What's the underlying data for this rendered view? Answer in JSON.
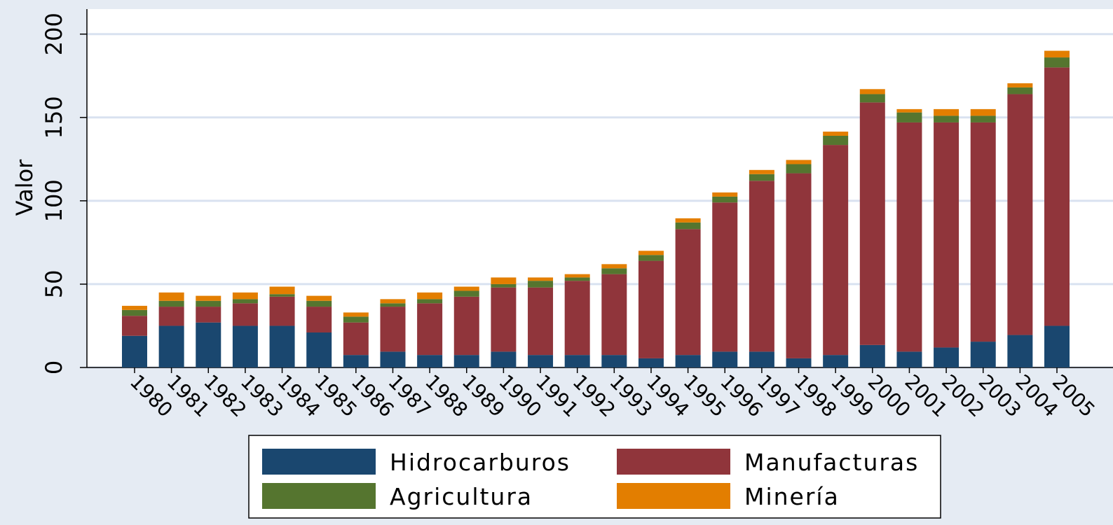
{
  "chart_data": {
    "type": "stacked_bar",
    "y_label": "Valor",
    "categories": [
      "1980",
      "1981",
      "1982",
      "1983",
      "1984",
      "1985",
      "1986",
      "1987",
      "1988",
      "1989",
      "1990",
      "1991",
      "1992",
      "1993",
      "1994",
      "1995",
      "1996",
      "1997",
      "1998",
      "1999",
      "2000",
      "2001",
      "2002",
      "2003",
      "2004",
      "2005"
    ],
    "series": [
      {
        "name": "Hidrocarburos",
        "color": "#1a476f",
        "values": [
          19,
          25,
          27,
          25,
          25,
          21,
          7.5,
          9.5,
          7.5,
          7.5,
          9.5,
          7.5,
          7.5,
          7.5,
          5.5,
          7.5,
          9.5,
          9.5,
          5.5,
          7.5,
          13.5,
          9.5,
          12,
          15.5,
          19.5,
          25
        ]
      },
      {
        "name": "Manufacturas",
        "color": "#90353b",
        "values": [
          12,
          11.5,
          9.5,
          13.5,
          17.5,
          15.5,
          19.5,
          27,
          31,
          35,
          38.5,
          40.5,
          44.5,
          48.5,
          58.5,
          75.5,
          89.5,
          102.5,
          111,
          126,
          145.5,
          137.5,
          135,
          131.5,
          144.5,
          155
        ]
      },
      {
        "name": "Agricultura",
        "color": "#55752f",
        "values": [
          3.5,
          3.5,
          3.5,
          2.5,
          1.5,
          3.5,
          3.5,
          2,
          2.5,
          3.5,
          2,
          4,
          2,
          3.5,
          3.5,
          4,
          3.5,
          4,
          5.5,
          5.5,
          5,
          6,
          4,
          4,
          4,
          6
        ]
      },
      {
        "name": "Minería",
        "color": "#e37e00",
        "values": [
          2.5,
          5,
          3,
          4,
          4.5,
          3,
          2.5,
          2.5,
          4,
          2.5,
          4,
          2,
          2,
          2.5,
          2.5,
          2.5,
          2.5,
          2.5,
          2.5,
          2.5,
          3,
          2,
          4,
          4,
          2.5,
          4
        ]
      }
    ],
    "ylim": [
      0,
      215
    ],
    "yticks": [
      0,
      50,
      100,
      150,
      200
    ],
    "grid": true
  }
}
